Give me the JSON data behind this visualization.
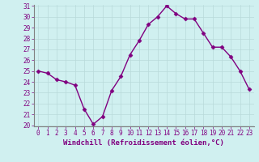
{
  "x": [
    0,
    1,
    2,
    3,
    4,
    5,
    6,
    7,
    8,
    9,
    10,
    11,
    12,
    13,
    14,
    15,
    16,
    17,
    18,
    19,
    20,
    21,
    22,
    23
  ],
  "y": [
    25.0,
    24.8,
    24.2,
    24.0,
    23.7,
    21.5,
    20.1,
    20.8,
    23.2,
    24.5,
    26.5,
    27.8,
    29.3,
    30.0,
    31.0,
    30.3,
    29.8,
    29.8,
    28.5,
    27.2,
    27.2,
    26.3,
    25.0,
    23.3
  ],
  "line_color": "#800080",
  "marker": "D",
  "marker_size": 2.5,
  "bg_color": "#d0f0f0",
  "grid_color": "#b8dada",
  "xlabel": "Windchill (Refroidissement éolien,°C)",
  "xlabel_color": "#800080",
  "tick_color": "#800080",
  "spine_color": "#808080",
  "ylim": [
    20,
    31
  ],
  "xlim": [
    -0.5,
    23.5
  ],
  "yticks": [
    20,
    21,
    22,
    23,
    24,
    25,
    26,
    27,
    28,
    29,
    30,
    31
  ],
  "xticks": [
    0,
    1,
    2,
    3,
    4,
    5,
    6,
    7,
    8,
    9,
    10,
    11,
    12,
    13,
    14,
    15,
    16,
    17,
    18,
    19,
    20,
    21,
    22,
    23
  ],
  "tick_fontsize": 5.5,
  "xlabel_fontsize": 6.5,
  "line_width": 1.0
}
